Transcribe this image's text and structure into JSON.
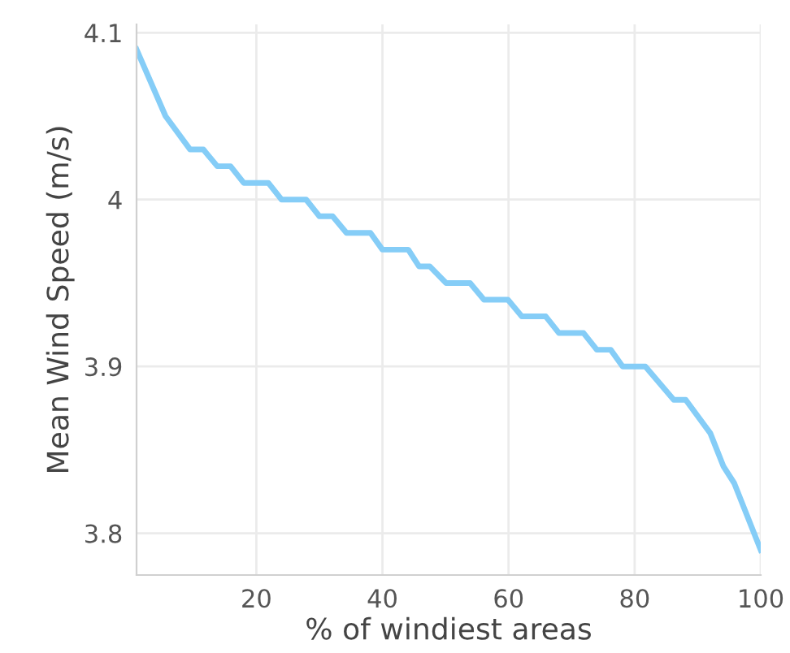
{
  "chart_data": {
    "type": "line",
    "xlabel": "% of windiest areas",
    "ylabel": "Mean Wind Speed (m/s)",
    "series": [
      {
        "color": "#85cdf7",
        "x": [
          1,
          5.6,
          9.5,
          11.6,
          13.8,
          15.9,
          18,
          21.9,
          24,
          27.9,
          30,
          32.1,
          34.3,
          38.1,
          40,
          44.1,
          45.8,
          47.5,
          50.1,
          53.9,
          56.1,
          59.9,
          62.1,
          65.9,
          68,
          71.9,
          74,
          76.2,
          78.1,
          81.7,
          86.2,
          88.1,
          92,
          94.1,
          95.8,
          100
        ],
        "values": [
          4.09,
          4.05,
          4.03,
          4.03,
          4.02,
          4.02,
          4.01,
          4.01,
          4.0,
          4.0,
          3.99,
          3.99,
          3.98,
          3.98,
          3.97,
          3.97,
          3.96,
          3.96,
          3.95,
          3.95,
          3.94,
          3.94,
          3.93,
          3.93,
          3.92,
          3.92,
          3.91,
          3.91,
          3.9,
          3.9,
          3.88,
          3.88,
          3.86,
          3.84,
          3.83,
          3.79
        ]
      }
    ],
    "xlim": [
      1,
      100
    ],
    "ylim": [
      3.775,
      4.105
    ],
    "xticks": [
      20,
      40,
      60,
      80,
      100
    ],
    "yticks": [
      3.8,
      3.9,
      {
        "value": 4.0,
        "label": "4"
      },
      4.1
    ],
    "grid": true,
    "marker": "none",
    "line_style": "solid"
  }
}
